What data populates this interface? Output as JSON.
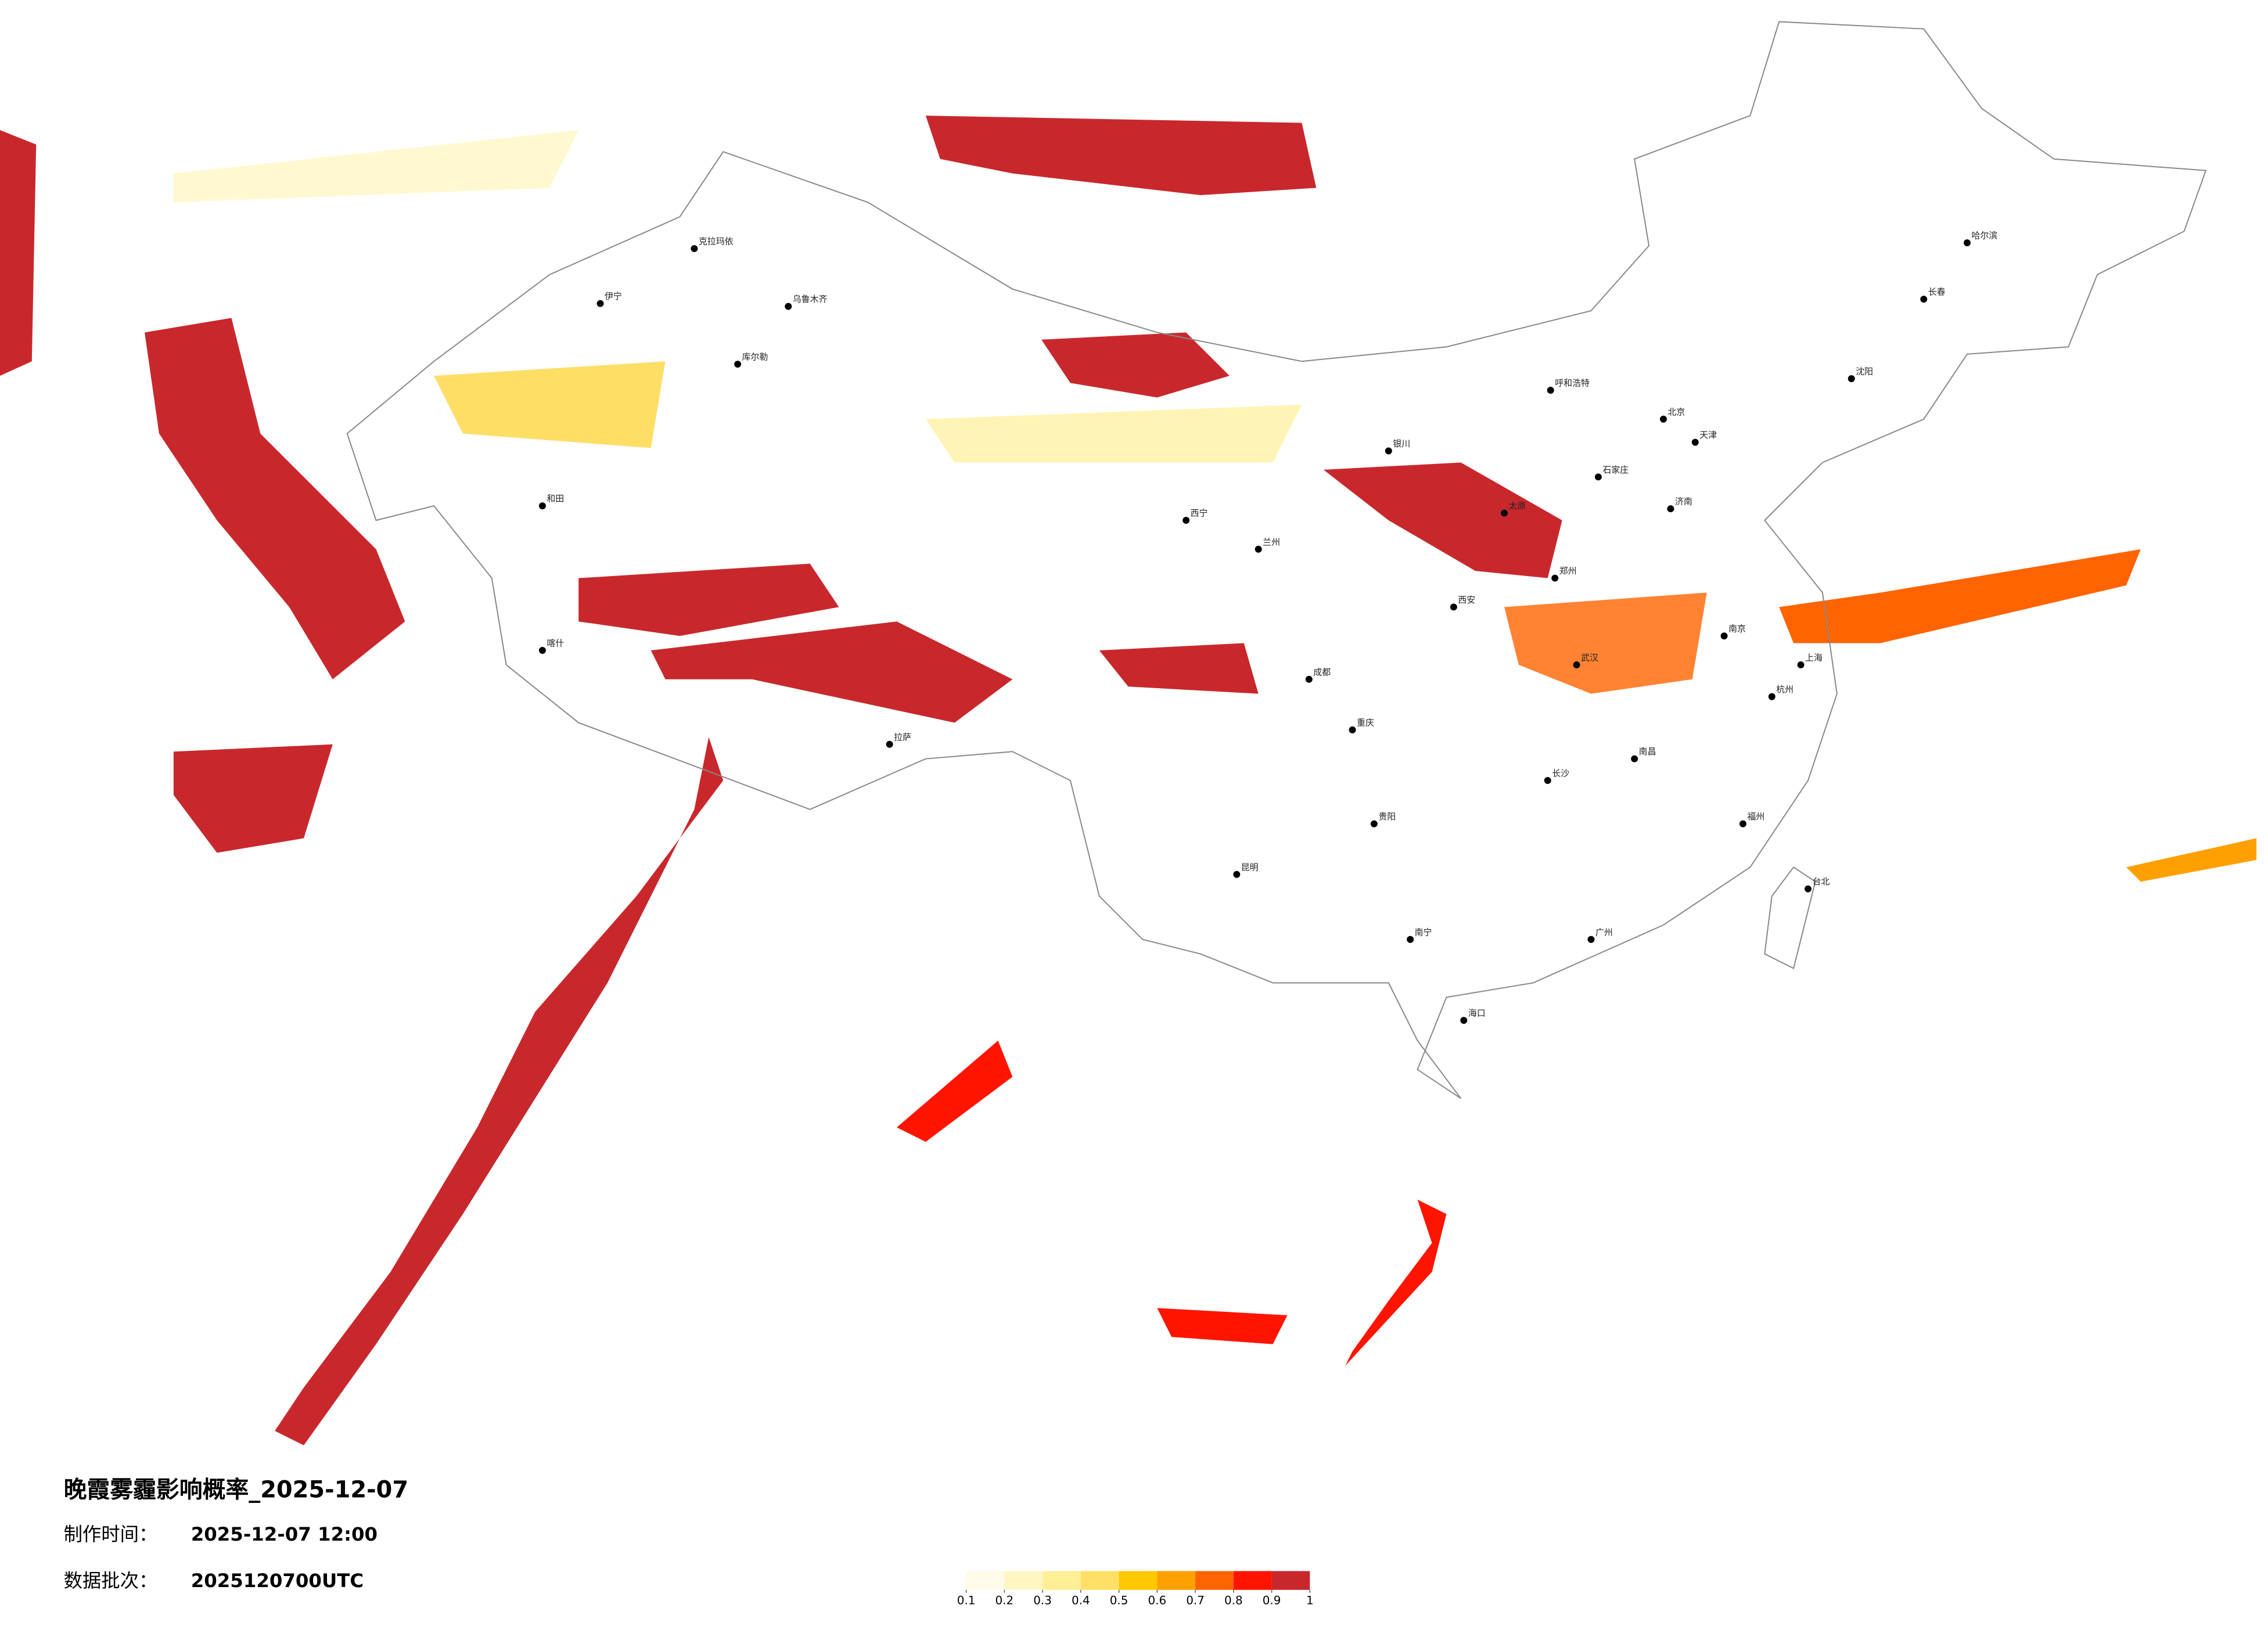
{
  "title": "晚霞雾霾影响概率_2025-12-07",
  "production": {
    "label": "制作时间：",
    "value": "2025-12-07 12:00"
  },
  "batch": {
    "label": "数据批次：",
    "value": "2025120700UTC"
  },
  "legend": {
    "ticks": [
      0.1,
      0.2,
      0.3,
      0.4,
      0.5,
      0.6,
      0.7,
      0.8,
      0.9,
      1
    ],
    "colors": [
      "#fffbe8",
      "#fff6c4",
      "#ffef96",
      "#ffe066",
      "#ffc800",
      "#ffa000",
      "#ff6400",
      "#ff1400",
      "#c8282c"
    ]
  },
  "cities": [
    "伊宁",
    "克拉玛依",
    "乌鲁木齐",
    "库尔勒",
    "和田",
    "喀什",
    "拉萨",
    "西宁",
    "兰州",
    "银川",
    "呼和浩特",
    "太原",
    "石家庄",
    "北京",
    "天津",
    "济南",
    "郑州",
    "西安",
    "成都",
    "重庆",
    "武汉",
    "南京",
    "上海",
    "杭州",
    "长沙",
    "南昌",
    "福州",
    "贵阳",
    "昆明",
    "南宁",
    "广州",
    "海口",
    "台北",
    "沈阳",
    "长春",
    "哈尔滨"
  ]
}
